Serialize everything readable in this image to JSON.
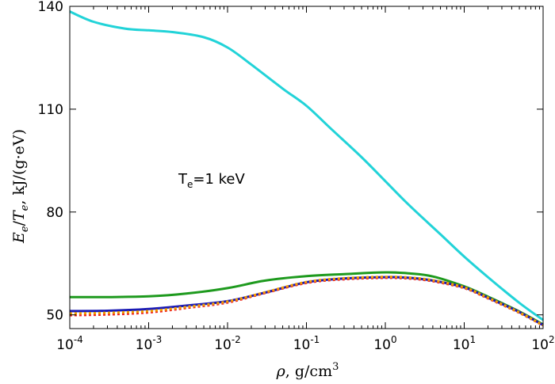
{
  "chart_data": {
    "type": "line",
    "xscale": "log",
    "xlim": [
      0.0001,
      100
    ],
    "ylim": [
      46,
      140
    ],
    "grid": false,
    "legend": "none",
    "xlabel": {
      "base": "ρ",
      "rest": ", g/cm",
      "sup": "3"
    },
    "ylabel": {
      "a": "E",
      "a_sub": "e",
      "slash": "/",
      "b": "T",
      "b_sub": "e",
      "rest": ", kJ/(g·eV)"
    },
    "annotation": {
      "base": "T",
      "sub": "e",
      "rest": "=1 keV"
    },
    "yticks": [
      {
        "value": 50,
        "label": "50"
      },
      {
        "value": 80,
        "label": "80"
      },
      {
        "value": 110,
        "label": "110"
      },
      {
        "value": 140,
        "label": "140"
      }
    ],
    "xticks": [
      {
        "value": 0.0001,
        "base": "10",
        "exp": "-4"
      },
      {
        "value": 0.001,
        "base": "10",
        "exp": "-3"
      },
      {
        "value": 0.01,
        "base": "10",
        "exp": "-2"
      },
      {
        "value": 0.1,
        "base": "10",
        "exp": "-1"
      },
      {
        "value": 1,
        "base": "10",
        "exp": "0"
      },
      {
        "value": 10,
        "base": "10",
        "exp": "1"
      },
      {
        "value": 100,
        "base": "10",
        "exp": "2"
      }
    ],
    "series": [
      {
        "color": "#22d3d8",
        "dash": "none",
        "x": [
          0.0001,
          0.0002,
          0.0005,
          0.001,
          0.002,
          0.005,
          0.01,
          0.02,
          0.05,
          0.1,
          0.2,
          0.5,
          1,
          2,
          5,
          10,
          20,
          50,
          100
        ],
        "y": [
          138.5,
          135.5,
          133.5,
          133,
          132.5,
          131,
          128,
          123,
          116,
          111,
          104.5,
          96,
          89,
          82,
          73.5,
          67,
          61,
          53.5,
          48.5
        ]
      },
      {
        "color": "#1e9a1e",
        "dash": "none",
        "x": [
          0.0001,
          0.0003,
          0.001,
          0.003,
          0.01,
          0.03,
          0.1,
          0.3,
          1,
          2,
          4,
          10,
          20,
          50,
          100
        ],
        "y": [
          55.2,
          55.2,
          55.4,
          56.2,
          57.8,
          60,
          61.3,
          61.9,
          62.4,
          62.1,
          61.2,
          58.3,
          55.3,
          51,
          47.2
        ]
      },
      {
        "color": "#1a1ab5",
        "dash": "none",
        "x": [
          0.0001,
          0.0003,
          0.001,
          0.003,
          0.01,
          0.03,
          0.1,
          0.3,
          1,
          2,
          4,
          10,
          20,
          50,
          100
        ],
        "y": [
          51.1,
          51.2,
          51.7,
          52.7,
          54,
          56.5,
          59.5,
          60.6,
          61,
          60.8,
          60,
          58,
          55,
          50.8,
          47
        ]
      },
      {
        "color": "#ee2222",
        "dash": "3,3",
        "x": [
          0.0001,
          0.0003,
          0.001,
          0.003,
          0.01,
          0.03,
          0.1,
          0.3,
          1,
          2,
          4,
          10,
          20,
          50,
          100
        ],
        "y": [
          49.9,
          50.1,
          50.7,
          52,
          53.6,
          56.4,
          59.3,
          60.4,
          60.8,
          60.6,
          59.8,
          57.8,
          54.8,
          50.6,
          46.9
        ]
      },
      {
        "color": "#f0a000",
        "dash": "3,3",
        "x": [
          0.0001,
          0.0003,
          0.001,
          0.003,
          0.01,
          0.03,
          0.1,
          0.3,
          1,
          2,
          4,
          10,
          20,
          50,
          100
        ],
        "y": [
          50.4,
          50.6,
          51.1,
          52.3,
          53.9,
          56.6,
          59.6,
          60.7,
          61.1,
          60.9,
          60.1,
          58,
          55,
          50.7,
          47
        ]
      }
    ]
  }
}
